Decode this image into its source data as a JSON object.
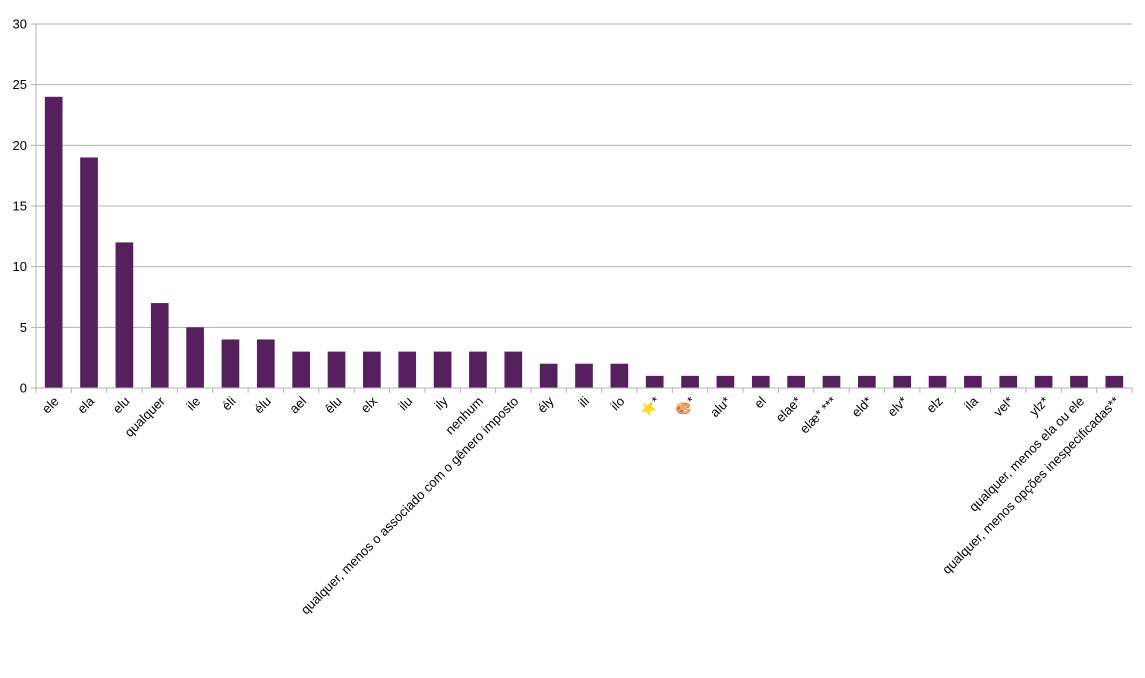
{
  "chart_data": {
    "type": "bar",
    "title": "",
    "xlabel": "",
    "ylabel": "",
    "ylim": [
      0,
      30
    ],
    "yticks": [
      0,
      5,
      10,
      15,
      20,
      25,
      30
    ],
    "grid": "horizontal",
    "legend": "none",
    "bar_color": "#561f5e",
    "grid_color": "#b3b3b3",
    "categories": [
      "ele",
      "ela",
      "elu",
      "qualquer",
      "ile",
      "éli",
      "élu",
      "ael",
      "êlu",
      "elx",
      "ilu",
      "ily",
      "nenhum",
      "qualquer, menos o associado com o gênero imposto",
      "ély",
      "ili",
      "ilo",
      "⭐*",
      "🎨*",
      "alu*",
      "el",
      "elae*",
      "elæ* ***",
      "eld*",
      "elv*",
      "elz",
      "ila",
      "vel*",
      "ylz*",
      "qualquer, menos ela ou ele",
      "qualquer, menos opções inespecificadas**"
    ],
    "values": [
      24,
      19,
      12,
      7,
      5,
      4,
      4,
      3,
      3,
      3,
      3,
      3,
      3,
      3,
      2,
      2,
      2,
      1,
      1,
      1,
      1,
      1,
      1,
      1,
      1,
      1,
      1,
      1,
      1,
      1,
      1
    ]
  }
}
